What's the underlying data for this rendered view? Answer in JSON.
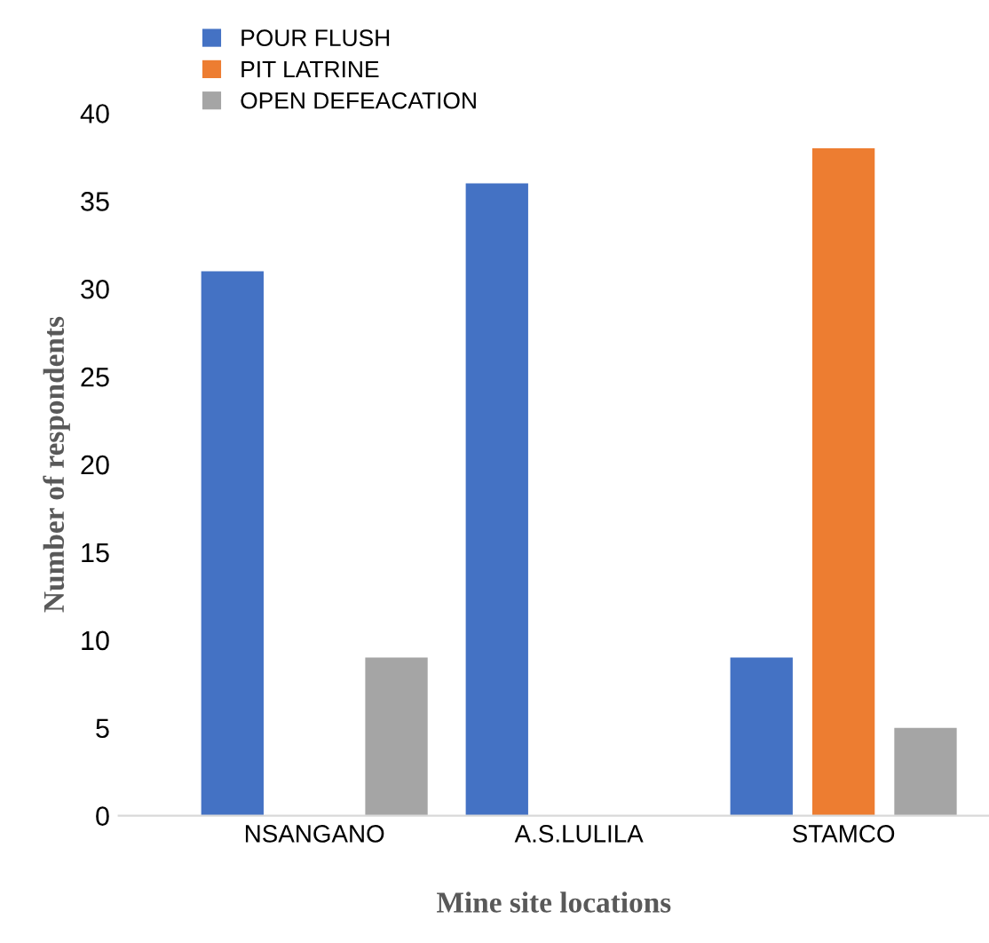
{
  "chart_data": {
    "type": "bar",
    "xlabel": "Mine site locations",
    "ylabel": "Number of respondents",
    "categories": [
      "NSANGANO",
      "A.S.LULILA",
      "STAMCO"
    ],
    "series": [
      {
        "name": "POUR FLUSH",
        "color": "#4472c4",
        "values": [
          31,
          36,
          9
        ]
      },
      {
        "name": "PIT LATRINE",
        "color": "#ed7d31",
        "values": [
          0,
          0,
          38
        ]
      },
      {
        "name": "OPEN DEFEACATION",
        "color": "#a5a5a5",
        "values": [
          9,
          0,
          5
        ]
      }
    ],
    "ylim": [
      0,
      40
    ],
    "yticks": [
      0,
      5,
      10,
      15,
      20,
      25,
      30,
      35,
      40
    ],
    "grid": false,
    "legend": "top left"
  }
}
